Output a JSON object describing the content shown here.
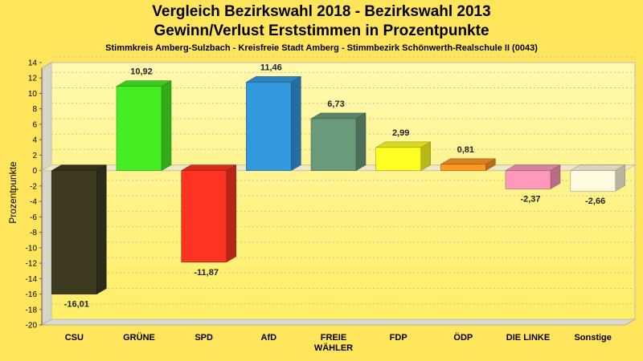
{
  "title": "Vergleich Bezirkswahl 2018 - Bezirkswahl 2013",
  "subtitle": "Gewinn/Verlust Erststimmen in Prozentpunkte",
  "caption": "Stimmkreis Amberg-Sulzbach - Kreisfreie Stadt Amberg - Stimmbezirk Schönwerth-Realschule II (0043)",
  "chart_data": {
    "type": "bar",
    "ylabel": "Prozentpunkte",
    "xlabel": "",
    "ylim": [
      -20,
      14
    ],
    "yticks": [
      14,
      12,
      10,
      8,
      6,
      4,
      2,
      0,
      -2,
      -4,
      -6,
      -8,
      -10,
      -12,
      -14,
      -16,
      -18,
      -20
    ],
    "grid": true,
    "categories": [
      [
        "CSU"
      ],
      [
        "GRÜNE"
      ],
      [
        "SPD"
      ],
      [
        "AfD"
      ],
      [
        "FREIE",
        "WÄHLER"
      ],
      [
        "FDP"
      ],
      [
        "ÖDP"
      ],
      [
        "DIE LINKE"
      ],
      [
        "Sonstige"
      ]
    ],
    "values": [
      -16.01,
      10.92,
      -11.87,
      11.46,
      6.73,
      2.99,
      0.81,
      -2.37,
      -2.66
    ],
    "value_labels": [
      "-16,01",
      "10,92",
      "-11,87",
      "11,46",
      "6,73",
      "2,99",
      "0,81",
      "-2,37",
      "-2,66"
    ],
    "colors": [
      "#3e3a20",
      "#44ee22",
      "#ff3322",
      "#3399dd",
      "#6a9a7c",
      "#ffff22",
      "#ff9922",
      "#ff99bb",
      "#fffbe0"
    ]
  }
}
